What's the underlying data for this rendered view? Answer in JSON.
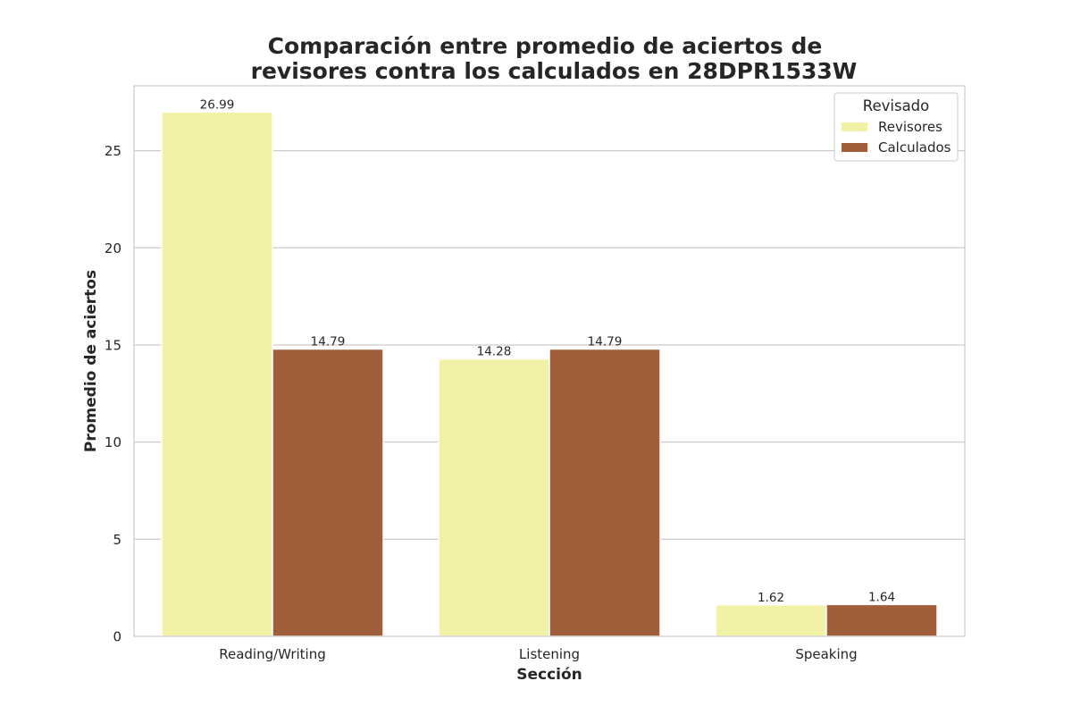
{
  "chart_data": {
    "type": "bar",
    "title_lines": [
      "Comparación entre promedio de aciertos de",
      "revisores contra los calculados en 28DPR1533W"
    ],
    "xlabel": "Sección",
    "ylabel": "Promedio de aciertos",
    "categories": [
      "Reading/Writing",
      "Listening",
      "Speaking"
    ],
    "series": [
      {
        "name": "Revisores",
        "color": "#f2f2a6",
        "values": [
          26.99,
          14.28,
          1.62
        ],
        "labels": [
          "26.99",
          "14.28",
          "1.62"
        ]
      },
      {
        "name": "Calculados",
        "color": "#a05f3a",
        "values": [
          14.79,
          14.79,
          1.64
        ],
        "labels": [
          "14.79",
          "14.79",
          "1.64"
        ]
      }
    ],
    "ylim": [
      0,
      28.34
    ],
    "yticks": [
      0,
      5,
      10,
      15,
      20,
      25
    ],
    "grid": "horizontal",
    "legend": {
      "title": "Revisado",
      "placement": "top-right"
    }
  }
}
